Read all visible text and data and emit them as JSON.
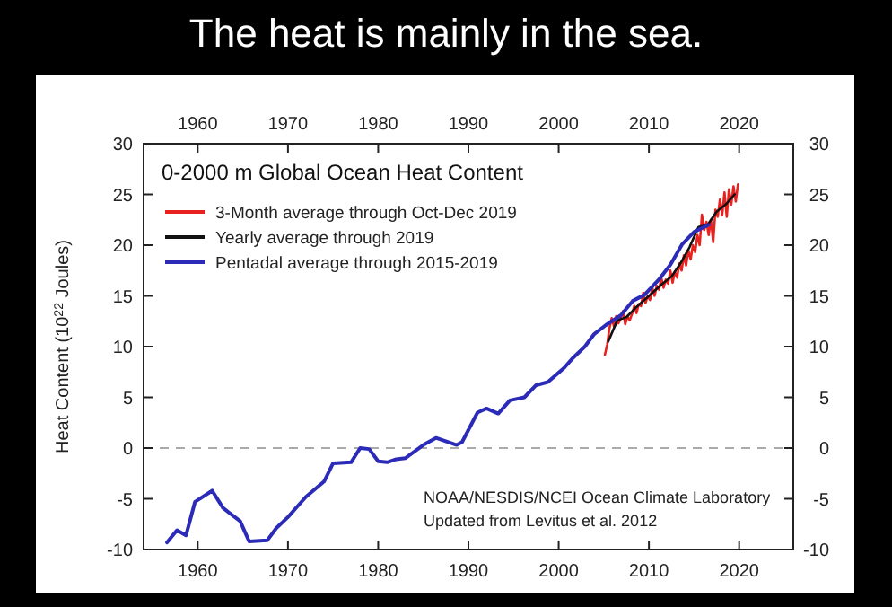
{
  "chart_data": {
    "type": "line",
    "title": "The heat is mainly in the sea.",
    "subtitle": "0-2000 m Global Ocean Heat Content",
    "ylabel": "Heat Content (10$^{22}$ Joules)",
    "xlim": [
      1954,
      2026
    ],
    "xticks": [
      1960,
      1970,
      1980,
      1990,
      2000,
      2010,
      2020
    ],
    "x2lim": [
      1954,
      2026
    ],
    "x2ticks": [
      1960,
      1970,
      1980,
      1990,
      2000,
      2010,
      2020
    ],
    "ylim": [
      -10,
      30
    ],
    "yticks": [
      -10,
      -5,
      0,
      5,
      10,
      15,
      20,
      25,
      30
    ],
    "y2lim": [
      -10,
      30
    ],
    "y2ticks": [
      -10,
      -5,
      0,
      5,
      10,
      15,
      20,
      25,
      30
    ],
    "legend": "top left",
    "grid": false,
    "line_style": "solid",
    "marker": "none",
    "ref_lines": [
      {
        "axis": "y",
        "value": 0,
        "color": "#aaaaaa",
        "line_style": "dashed"
      }
    ],
    "annotations": [
      "NOAA/NESDIS/NCEI Ocean Climate Laboratory",
      "Updated from Levitus et al. 2012"
    ],
    "series": [
      {
        "name": "3-Month average through Oct-Dec 2019",
        "color": "#e8231f",
        "x": [
          2005.125,
          2005.375,
          2005.625,
          2005.875,
          2006.125,
          2006.375,
          2006.625,
          2006.875,
          2007.125,
          2007.375,
          2007.625,
          2007.875,
          2008.125,
          2008.375,
          2008.625,
          2008.875,
          2009.125,
          2009.375,
          2009.625,
          2009.875,
          2010.125,
          2010.375,
          2010.625,
          2010.875,
          2011.125,
          2011.375,
          2011.625,
          2011.875,
          2012.125,
          2012.375,
          2012.625,
          2012.875,
          2013.125,
          2013.375,
          2013.625,
          2013.875,
          2014.125,
          2014.375,
          2014.625,
          2014.875,
          2015.125,
          2015.375,
          2015.625,
          2015.875,
          2016.125,
          2016.375,
          2016.625,
          2016.875,
          2017.125,
          2017.375,
          2017.625,
          2017.875,
          2018.125,
          2018.375,
          2018.625,
          2018.875,
          2019.125,
          2019.375,
          2019.625,
          2019.875
        ],
        "values": [
          9.2,
          10.2,
          11.8,
          12.8,
          12.0,
          13.0,
          12.3,
          12.8,
          13.5,
          12.2,
          13.0,
          12.6,
          13.2,
          14.0,
          13.3,
          14.2,
          14.0,
          15.3,
          14.3,
          15.0,
          14.6,
          15.8,
          15.0,
          16.0,
          15.6,
          16.8,
          15.8,
          16.6,
          16.2,
          17.5,
          16.3,
          17.4,
          16.8,
          18.2,
          17.5,
          19.0,
          18.0,
          19.5,
          18.6,
          20.0,
          19.3,
          21.0,
          20.0,
          23.0,
          21.5,
          22.3,
          21.0,
          22.5,
          20.3,
          23.5,
          22.8,
          24.5,
          23.0,
          25.2,
          22.8,
          25.5,
          24.0,
          25.8,
          24.3,
          26.0
        ]
      },
      {
        "name": "Yearly average through 2019",
        "color": "#111111",
        "x": [
          2005.5,
          2006.5,
          2007.5,
          2008.5,
          2009.5,
          2010.5,
          2011.5,
          2012.5,
          2013.5,
          2014.5,
          2015.5,
          2016.5,
          2017.5,
          2018.5,
          2019.5
        ],
        "values": [
          10.5,
          12.6,
          12.9,
          13.8,
          14.6,
          15.4,
          16.2,
          16.9,
          18.2,
          19.8,
          21.8,
          22.0,
          23.3,
          24.0,
          25.0
        ]
      },
      {
        "name": "Pentadal average through 2015-2019",
        "color": "#2b2bb8",
        "x": [
          1956.6,
          1957.7,
          1958.7,
          1959.7,
          1961.6,
          1962.8,
          1964.7,
          1965.7,
          1967.7,
          1968.7,
          1970,
          1971,
          1972,
          1974,
          1975,
          1977,
          1978,
          1979,
          1980,
          1981,
          1982,
          1983,
          1985,
          1986.4,
          1988.7,
          1989.3,
          1991,
          1992,
          1993.3,
          1994.6,
          1996.2,
          1997.5,
          1998.8,
          2000.6,
          2001.6,
          2002.9,
          2003.9,
          2005.2,
          2006.9,
          2008.2,
          2009.5,
          2011.1,
          2012.4,
          2013.7,
          2015,
          2016.6
        ],
        "values": [
          -9.3,
          -8.1,
          -8.6,
          -5.3,
          -4.2,
          -5.9,
          -7.2,
          -9.2,
          -9.1,
          -7.9,
          -6.8,
          -5.8,
          -4.8,
          -3.3,
          -1.5,
          -1.4,
          0,
          -0.1,
          -1.3,
          -1.4,
          -1.1,
          -1.0,
          0.3,
          1.0,
          0.3,
          0.6,
          3.5,
          3.9,
          3.4,
          4.7,
          5.0,
          6.2,
          6.5,
          7.9,
          8.9,
          10,
          11.2,
          12.1,
          13.1,
          14.5,
          15.1,
          16.6,
          18.1,
          20.1,
          21.3,
          22.0
        ]
      }
    ]
  }
}
